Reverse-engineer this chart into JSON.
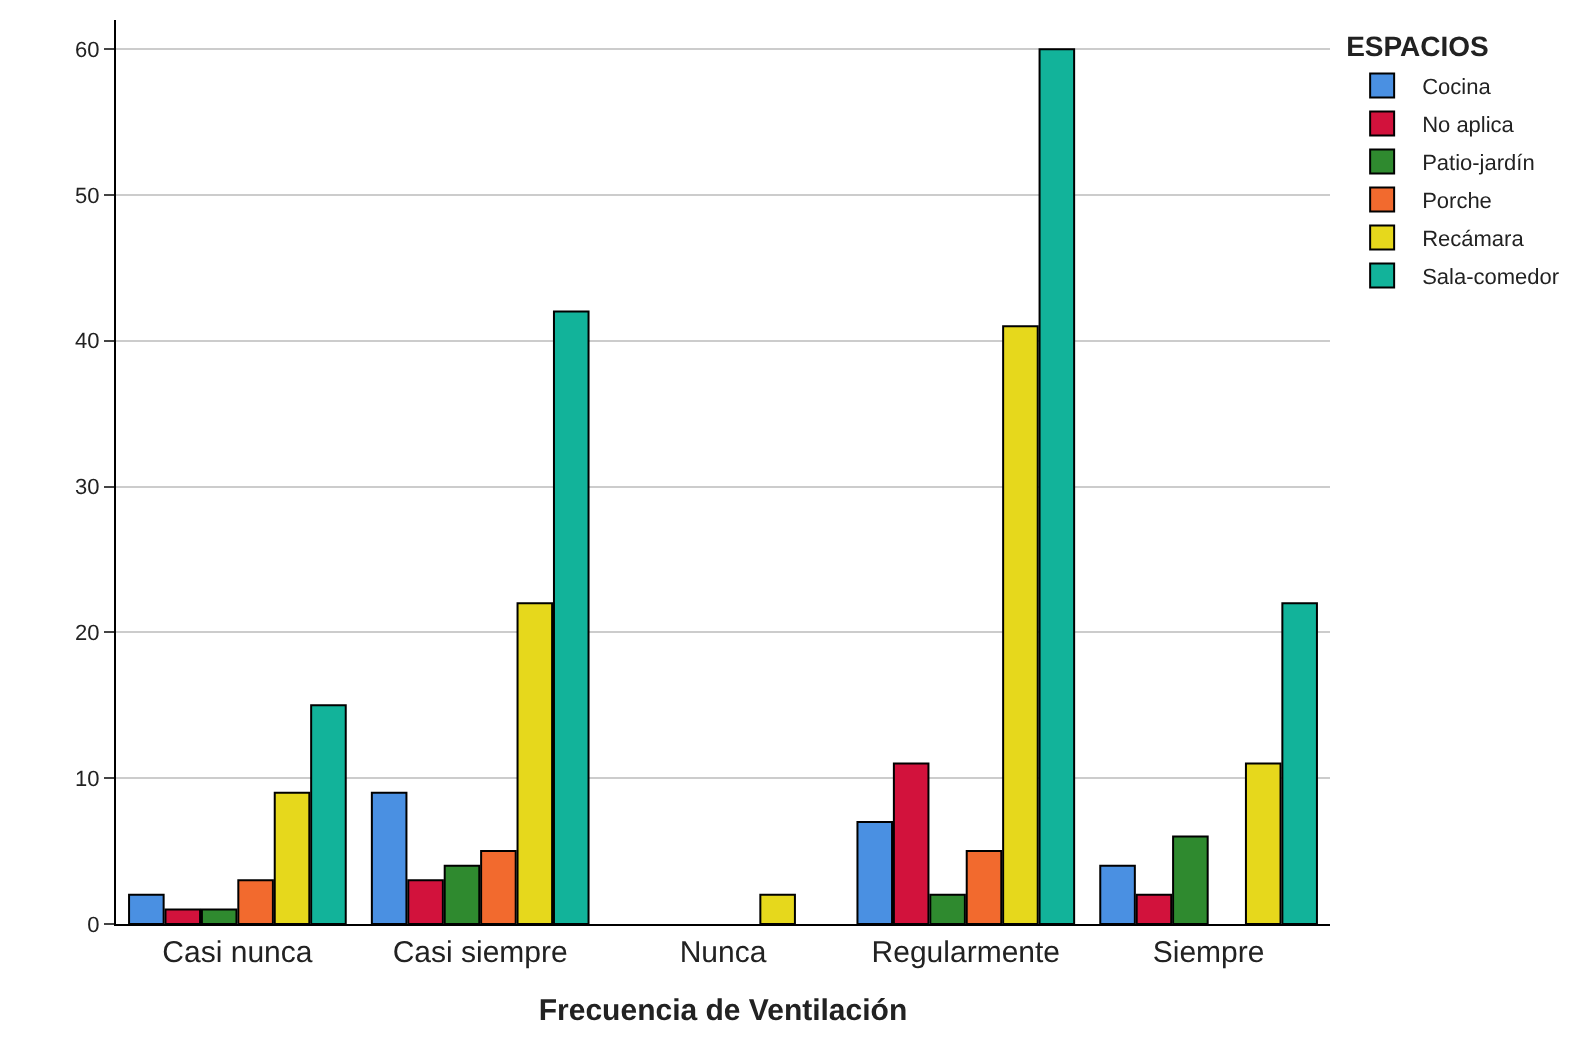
{
  "chart_data": {
    "type": "bar",
    "xlabel": "Frecuencia de Ventilación",
    "legend_title": "ESPACIOS",
    "categories": [
      "Casi nunca",
      "Casi siempre",
      "Nunca",
      "Regularmente",
      "Siempre"
    ],
    "series": [
      {
        "name": "Cocina",
        "color": "#4a90e2",
        "values": [
          2,
          9,
          null,
          7,
          4
        ]
      },
      {
        "name": "No aplica",
        "color": "#d2123c",
        "values": [
          1,
          3,
          null,
          11,
          2
        ]
      },
      {
        "name": "Patio-jardín",
        "color": "#2f8a2f",
        "values": [
          1,
          4,
          null,
          2,
          6
        ]
      },
      {
        "name": "Porche",
        "color": "#f26a2e",
        "values": [
          3,
          5,
          null,
          5,
          null
        ]
      },
      {
        "name": "Recámara",
        "color": "#e6d81c",
        "values": [
          9,
          22,
          2,
          41,
          11
        ]
      },
      {
        "name": "Sala-comedor",
        "color": "#12b39a",
        "values": [
          15,
          42,
          null,
          60,
          22
        ]
      }
    ],
    "ylim": [
      0,
      62
    ],
    "yticks": [
      0,
      10,
      20,
      30,
      40,
      50,
      60
    ],
    "grid": "y",
    "legend": "top right"
  }
}
